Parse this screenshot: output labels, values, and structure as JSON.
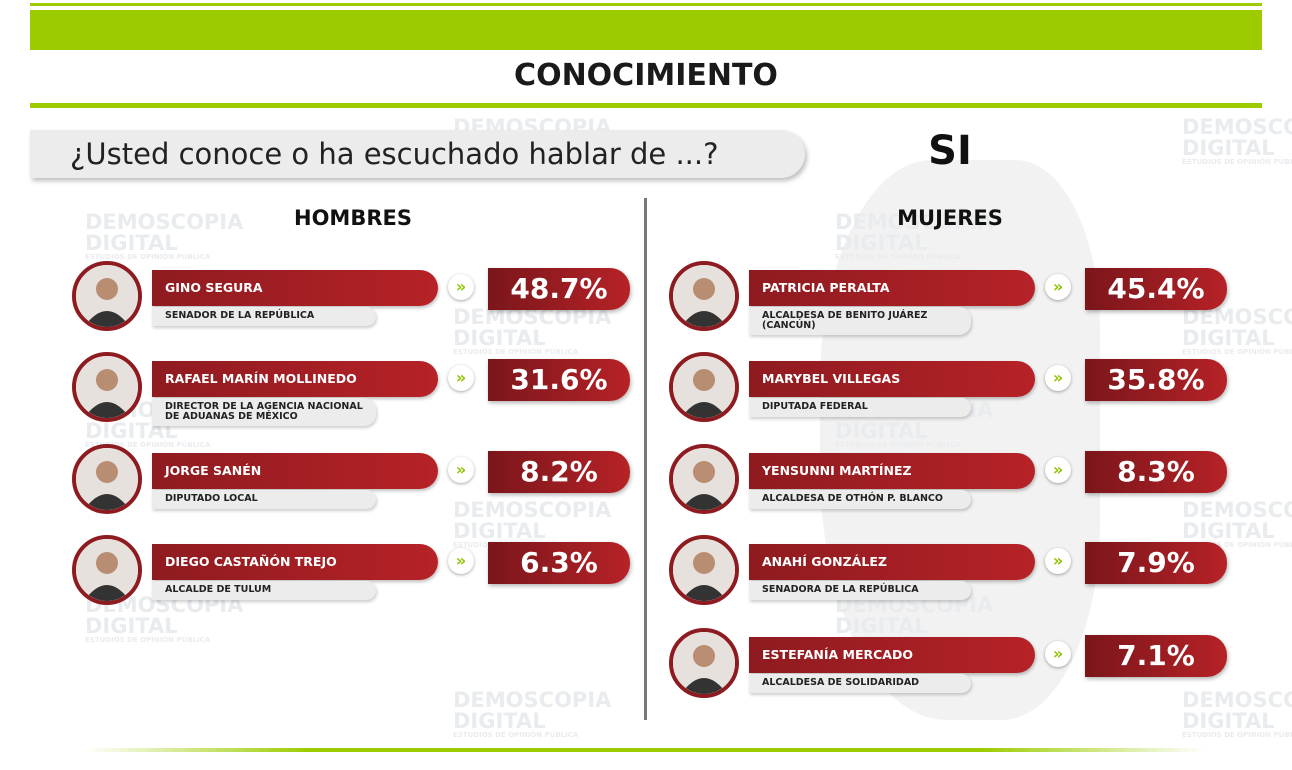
{
  "header": {
    "title": "CONOCIMIENTO"
  },
  "question": "¿Usted conoce o ha escuchado hablar de ...?",
  "answer": "SI",
  "watermark": {
    "line1": "DEMOSCOPIA",
    "line2": "DIGITAL",
    "tagline": "ESTUDIOS DE OPINIÓN PÚBLICA"
  },
  "groups": [
    {
      "title": "HOMBRES",
      "people": [
        {
          "name": "GINO SEGURA",
          "role": "SENADOR DE LA REPÚBLICA",
          "value": "48.7%"
        },
        {
          "name": "RAFAEL MARÍN MOLLINEDO",
          "role": "DIRECTOR DE LA AGENCIA NACIONAL DE ADUANAS DE MÉXICO",
          "value": "31.6%"
        },
        {
          "name": "JORGE SANÉN",
          "role": "DIPUTADO LOCAL",
          "value": "8.2%"
        },
        {
          "name": "DIEGO CASTAÑÓN TREJO",
          "role": "ALCALDE DE TULUM",
          "value": "6.3%"
        }
      ]
    },
    {
      "title": "MUJERES",
      "people": [
        {
          "name": "PATRICIA PERALTA",
          "role": "ALCALDESA DE BENITO JUÁREZ (CANCÚN)",
          "value": "45.4%"
        },
        {
          "name": "MARYBEL VILLEGAS",
          "role": "DIPUTADA FEDERAL",
          "value": "35.8%"
        },
        {
          "name": "YENSUNNI MARTÍNEZ",
          "role": "ALCALDESA DE OTHÓN P. BLANCO",
          "value": "8.3%"
        },
        {
          "name": "ANAHÍ GONZÁLEZ",
          "role": "SENADORA DE LA REPÚBLICA",
          "value": "7.9%"
        },
        {
          "name": "ESTEFANÍA MERCADO",
          "role": "ALCALDESA DE SOLIDARIDAD",
          "value": "7.1%"
        }
      ]
    }
  ]
}
